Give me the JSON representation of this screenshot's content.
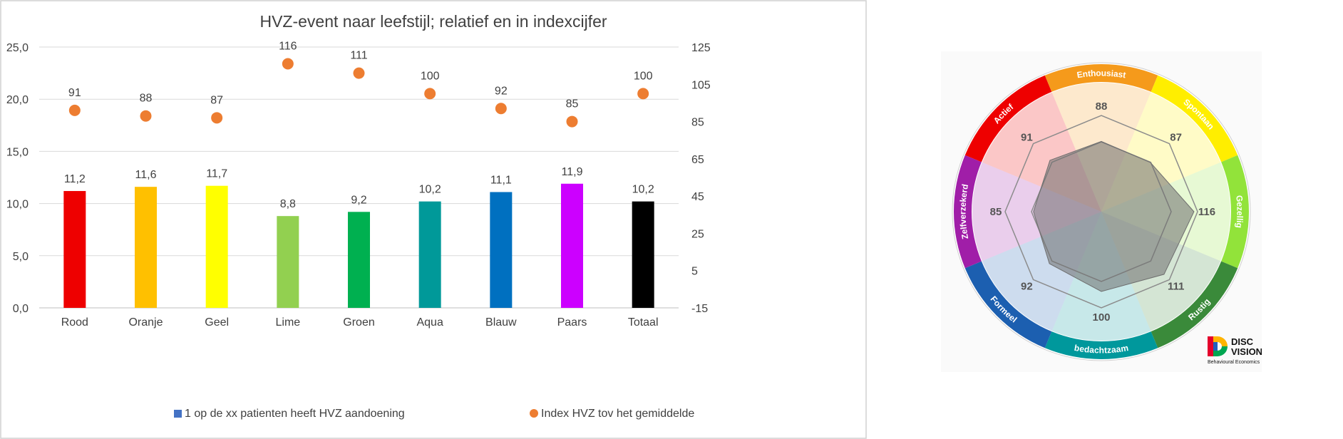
{
  "chart_data": {
    "type": "bar",
    "title": "HVZ-event naar leefstijl; relatief en in indexcijfer",
    "categories": [
      "Rood",
      "Oranje",
      "Geel",
      "Lime",
      "Groen",
      "Aqua",
      "Blauw",
      "Paars",
      "Totaal"
    ],
    "bar_colors": [
      "#ee0000",
      "#ffc000",
      "#ffff00",
      "#92d050",
      "#00b050",
      "#009999",
      "#0070c0",
      "#cc00ff",
      "#000000"
    ],
    "series": [
      {
        "name": "1 op de xx patienten heeft HVZ aandoening",
        "type": "bar",
        "axis": "left",
        "values": [
          11.2,
          11.6,
          11.7,
          8.8,
          9.2,
          10.2,
          11.1,
          11.9,
          10.2
        ],
        "labels": [
          "11,2",
          "11,6",
          "11,7",
          "8,8",
          "9,2",
          "10,2",
          "11,1",
          "11,9",
          "10,2"
        ],
        "legend_color": "#4472c4"
      },
      {
        "name": "Index HVZ tov het gemiddelde",
        "type": "scatter",
        "axis": "right",
        "values": [
          91,
          88,
          87,
          116,
          111,
          100,
          92,
          85,
          100
        ],
        "labels": [
          "91",
          "88",
          "87",
          "116",
          "111",
          "100",
          "92",
          "85",
          "100"
        ],
        "color": "#ed7d31"
      }
    ],
    "y_left": {
      "ylim": [
        0,
        25
      ],
      "ticks": [
        "0,0",
        "5,0",
        "10,0",
        "15,0",
        "20,0",
        "25,0"
      ]
    },
    "y_right": {
      "ylim": [
        -15,
        125
      ],
      "ticks": [
        "-15",
        "5",
        "25",
        "45",
        "65",
        "85",
        "105",
        "125"
      ]
    },
    "grid": true,
    "legend_position": "bottom"
  },
  "wheel": {
    "segments": [
      {
        "name": "Actief",
        "value": 91,
        "color": "#ee0000"
      },
      {
        "name": "Enthousiast",
        "value": 88,
        "color": "#f59a1b"
      },
      {
        "name": "Spontaan",
        "value": 87,
        "color": "#ffee00"
      },
      {
        "name": "Gezellig",
        "value": 116,
        "color": "#92e33a"
      },
      {
        "name": "Rustig",
        "value": 111,
        "color": "#3a8a3a"
      },
      {
        "name": "bedachtzaam",
        "value": 100,
        "color": "#00989c"
      },
      {
        "name": "Formeel",
        "value": 92,
        "color": "#1c5fb0"
      },
      {
        "name": "Zelfverzekerd",
        "value": 85,
        "color": "#a01ea8"
      }
    ]
  },
  "logo": {
    "line1": "DISC",
    "line2": "VISION",
    "tagline": "Behavioural Economics"
  }
}
